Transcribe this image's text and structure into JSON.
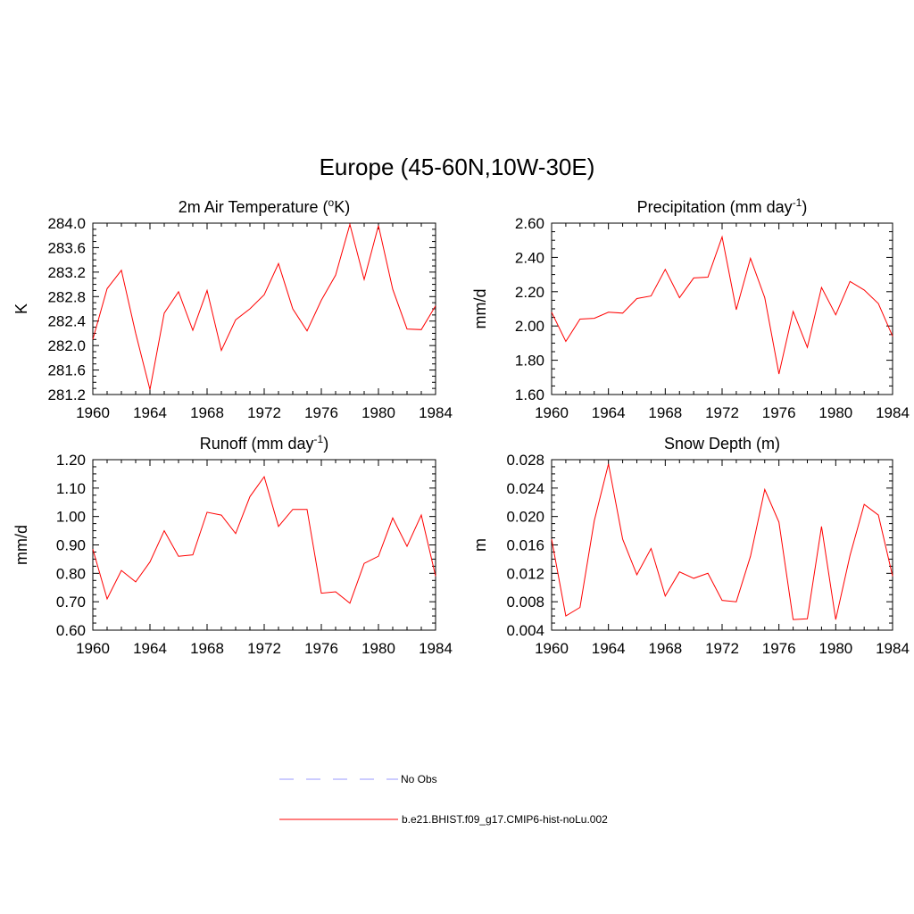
{
  "figure_title": "Europe (45-60N,10W-30E)",
  "legend": {
    "entries": [
      {
        "label": "No Obs",
        "color": "#9a9aff",
        "dash": true
      },
      {
        "label": "b.e21.BHIST.f09_g17.CMIP6-hist-noLu.002",
        "color": "#ff0000",
        "dash": false
      }
    ]
  },
  "chart_data": [
    {
      "type": "line",
      "title_main": "2m Air Temperature (",
      "title_sup": "o",
      "title_after": "K)",
      "ylabel": "K",
      "xlim": [
        1960,
        1984
      ],
      "ylim": [
        281.2,
        284.0
      ],
      "yticks": [
        284.0,
        283.6,
        283.2,
        282.8,
        282.4,
        282.0,
        281.6,
        281.2
      ],
      "ytick_labels": [
        "284.0",
        "283.6",
        "283.2",
        "282.8",
        "282.4",
        "282.0",
        "281.6",
        "281.2"
      ],
      "xticks": [
        1960,
        1964,
        1968,
        1972,
        1976,
        1980,
        1984
      ],
      "x": [
        1960,
        1961,
        1962,
        1963,
        1964,
        1965,
        1966,
        1967,
        1968,
        1969,
        1970,
        1971,
        1972,
        1973,
        1974,
        1975,
        1976,
        1977,
        1978,
        1979,
        1980,
        1981,
        1982,
        1983,
        1984
      ],
      "series": [
        {
          "name": "b.e21.BHIST.f09_g17.CMIP6-hist-noLu.002",
          "color": "#ff0000",
          "values": [
            282.1,
            282.93,
            283.23,
            282.2,
            281.28,
            282.53,
            282.88,
            282.25,
            282.9,
            281.92,
            282.42,
            282.6,
            282.83,
            283.34,
            282.6,
            282.24,
            282.74,
            283.15,
            283.98,
            283.08,
            283.96,
            282.92,
            282.27,
            282.26,
            282.65
          ]
        }
      ]
    },
    {
      "type": "line",
      "title_main": "Precipitation (mm day",
      "title_sup": "-1",
      "title_after": ")",
      "ylabel": "mm/d",
      "xlim": [
        1960,
        1984
      ],
      "ylim": [
        1.6,
        2.6
      ],
      "yticks": [
        2.6,
        2.4,
        2.2,
        2.0,
        1.8,
        1.6
      ],
      "ytick_labels": [
        "2.60",
        "2.40",
        "2.20",
        "2.00",
        "1.80",
        "1.60"
      ],
      "xticks": [
        1960,
        1964,
        1968,
        1972,
        1976,
        1980,
        1984
      ],
      "x": [
        1960,
        1961,
        1962,
        1963,
        1964,
        1965,
        1966,
        1967,
        1968,
        1969,
        1970,
        1971,
        1972,
        1973,
        1974,
        1975,
        1976,
        1977,
        1978,
        1979,
        1980,
        1981,
        1982,
        1983,
        1984
      ],
      "series": [
        {
          "name": "b.e21.BHIST.f09_g17.CMIP6-hist-noLu.002",
          "color": "#ff0000",
          "values": [
            2.08,
            1.91,
            2.04,
            2.045,
            2.08,
            2.075,
            2.16,
            2.175,
            2.33,
            2.165,
            2.28,
            2.285,
            2.52,
            2.095,
            2.395,
            2.165,
            1.72,
            2.085,
            1.875,
            2.225,
            2.065,
            2.26,
            2.21,
            2.13,
            1.94
          ]
        }
      ]
    },
    {
      "type": "line",
      "title_main": "Runoff (mm day",
      "title_sup": "-1",
      "title_after": ")",
      "ylabel": "mm/d",
      "xlim": [
        1960,
        1984
      ],
      "ylim": [
        0.6,
        1.2
      ],
      "yticks": [
        1.2,
        1.1,
        1.0,
        0.9,
        0.8,
        0.7,
        0.6
      ],
      "ytick_labels": [
        "1.20",
        "1.10",
        "1.00",
        "0.90",
        "0.80",
        "0.70",
        "0.60"
      ],
      "xticks": [
        1960,
        1964,
        1968,
        1972,
        1976,
        1980,
        1984
      ],
      "x": [
        1960,
        1961,
        1962,
        1963,
        1964,
        1965,
        1966,
        1967,
        1968,
        1969,
        1970,
        1971,
        1972,
        1973,
        1974,
        1975,
        1976,
        1977,
        1978,
        1979,
        1980,
        1981,
        1982,
        1983,
        1984
      ],
      "series": [
        {
          "name": "b.e21.BHIST.f09_g17.CMIP6-hist-noLu.002",
          "color": "#ff0000",
          "values": [
            0.885,
            0.71,
            0.81,
            0.77,
            0.84,
            0.95,
            0.86,
            0.865,
            1.015,
            1.005,
            0.94,
            1.07,
            1.14,
            0.965,
            1.025,
            1.025,
            0.73,
            0.735,
            0.695,
            0.835,
            0.86,
            0.995,
            0.895,
            1.005,
            0.79
          ]
        }
      ]
    },
    {
      "type": "line",
      "title_main": "Snow Depth (m)",
      "title_sup": "",
      "title_after": "",
      "ylabel": "m",
      "xlim": [
        1960,
        1984
      ],
      "ylim": [
        0.004,
        0.028
      ],
      "yticks": [
        0.028,
        0.024,
        0.02,
        0.016,
        0.012,
        0.008,
        0.004
      ],
      "ytick_labels": [
        "0.028",
        "0.024",
        "0.020",
        "0.016",
        "0.012",
        "0.008",
        "0.004"
      ],
      "xticks": [
        1960,
        1964,
        1968,
        1972,
        1976,
        1980,
        1984
      ],
      "x": [
        1960,
        1961,
        1962,
        1963,
        1964,
        1965,
        1966,
        1967,
        1968,
        1969,
        1970,
        1971,
        1972,
        1973,
        1974,
        1975,
        1976,
        1977,
        1978,
        1979,
        1980,
        1981,
        1982,
        1983,
        1984
      ],
      "series": [
        {
          "name": "b.e21.BHIST.f09_g17.CMIP6-hist-noLu.002",
          "color": "#ff0000",
          "values": [
            0.0168,
            0.006,
            0.0072,
            0.0194,
            0.0274,
            0.0168,
            0.0118,
            0.0155,
            0.0088,
            0.0122,
            0.0113,
            0.012,
            0.0082,
            0.008,
            0.0144,
            0.0238,
            0.0192,
            0.0055,
            0.0056,
            0.0186,
            0.0055,
            0.0145,
            0.0217,
            0.0202,
            0.0116
          ]
        }
      ]
    }
  ]
}
